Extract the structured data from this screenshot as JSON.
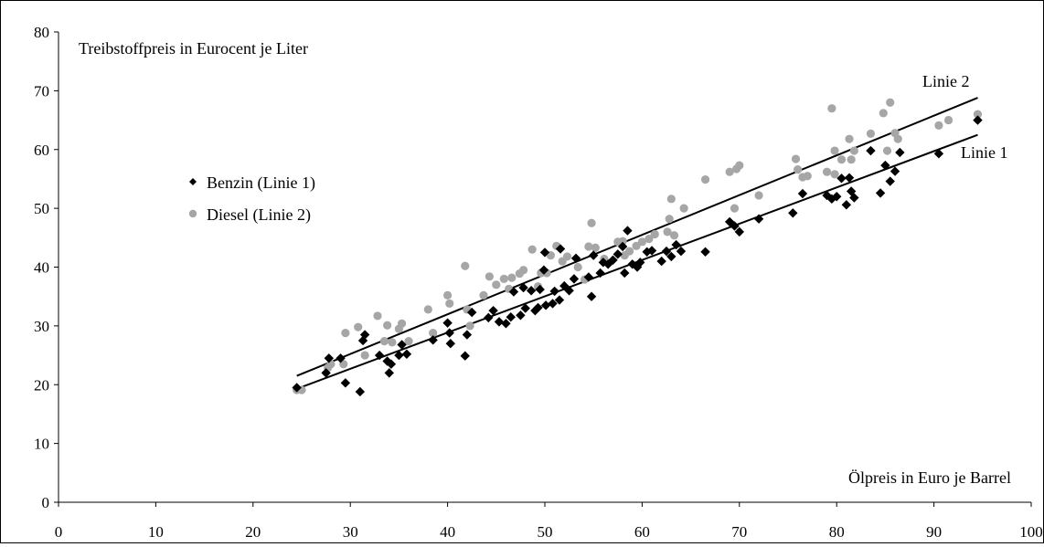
{
  "chart_data": {
    "type": "scatter",
    "title": "",
    "ylabel": "Treibstoffpreis in Eurocent je Liter",
    "xlabel": "Ölpreis in Euro je Barrel",
    "xlim": [
      0,
      100
    ],
    "ylim": [
      0,
      80
    ],
    "x_ticks": [
      "0",
      "10",
      "20",
      "30",
      "40",
      "50",
      "60",
      "70",
      "80",
      "90",
      "100"
    ],
    "y_ticks": [
      "0",
      "10",
      "20",
      "30",
      "40",
      "50",
      "60",
      "70",
      "80"
    ],
    "grid": false,
    "legend": {
      "placement": "left-middle"
    },
    "series": [
      {
        "name": "Benzin (Linie 1)",
        "marker": "diamond",
        "color": "#000000",
        "points": [
          [
            24.5,
            19.5
          ],
          [
            27.5,
            22
          ],
          [
            27.8,
            24.5
          ],
          [
            29,
            24.5
          ],
          [
            29.5,
            20.3
          ],
          [
            31,
            18.8
          ],
          [
            31.3,
            27.5
          ],
          [
            31.5,
            28.5
          ],
          [
            33,
            25
          ],
          [
            33.8,
            24
          ],
          [
            34,
            22
          ],
          [
            34.2,
            23.5
          ],
          [
            35,
            25
          ],
          [
            35.3,
            26.8
          ],
          [
            35.8,
            25.2
          ],
          [
            38.5,
            27.6
          ],
          [
            40,
            30.5
          ],
          [
            40.2,
            28.8
          ],
          [
            40.3,
            27
          ],
          [
            41.8,
            24.9
          ],
          [
            42,
            28.5
          ],
          [
            42.5,
            32.3
          ],
          [
            44.2,
            31.4
          ],
          [
            44.7,
            32.6
          ],
          [
            45.3,
            30.7
          ],
          [
            46,
            30.4
          ],
          [
            46.5,
            31.5
          ],
          [
            46.8,
            35.8
          ],
          [
            47.5,
            31.8
          ],
          [
            47.8,
            36.5
          ],
          [
            48,
            33
          ],
          [
            48.6,
            36
          ],
          [
            49,
            32.6
          ],
          [
            49.3,
            33.1
          ],
          [
            49.5,
            36.2
          ],
          [
            49.9,
            39.5
          ],
          [
            50,
            42.5
          ],
          [
            50.1,
            33.5
          ],
          [
            50.8,
            33.8
          ],
          [
            51,
            35.9
          ],
          [
            51.5,
            34.4
          ],
          [
            51.6,
            43.1
          ],
          [
            52,
            36.8
          ],
          [
            52.5,
            36
          ],
          [
            53,
            38
          ],
          [
            53.2,
            41.5
          ],
          [
            54.5,
            38.3
          ],
          [
            54.8,
            35
          ],
          [
            55,
            42
          ],
          [
            55.7,
            39
          ],
          [
            56,
            40.8
          ],
          [
            56.5,
            40.5
          ],
          [
            57,
            41.2
          ],
          [
            57.5,
            42.2
          ],
          [
            58,
            43.5
          ],
          [
            58.2,
            39
          ],
          [
            58.5,
            46.2
          ],
          [
            59,
            40.5
          ],
          [
            59.5,
            40
          ],
          [
            59.8,
            40.8
          ],
          [
            60.5,
            42.6
          ],
          [
            61,
            42.8
          ],
          [
            62,
            41
          ],
          [
            62.5,
            42.7
          ],
          [
            63,
            41.8
          ],
          [
            63.5,
            43.8
          ],
          [
            64,
            42.7
          ],
          [
            66.5,
            42.6
          ],
          [
            69,
            47.7
          ],
          [
            69.5,
            47
          ],
          [
            70,
            46
          ],
          [
            72,
            48.2
          ],
          [
            75.5,
            49.2
          ],
          [
            76.5,
            52.5
          ],
          [
            79,
            52.2
          ],
          [
            79.5,
            51.6
          ],
          [
            80,
            52
          ],
          [
            80.5,
            55.1
          ],
          [
            81,
            50.6
          ],
          [
            81.3,
            55.2
          ],
          [
            81.5,
            52.9
          ],
          [
            81.8,
            51.8
          ],
          [
            83.5,
            59.8
          ],
          [
            84.5,
            52.6
          ],
          [
            85,
            57.3
          ],
          [
            85.5,
            54.6
          ],
          [
            86,
            56.3
          ],
          [
            86.5,
            59.5
          ],
          [
            90.5,
            59.3
          ],
          [
            94.5,
            65
          ]
        ]
      },
      {
        "name": "Diesel (Linie 2)",
        "marker": "circle",
        "color": "#a6a6a6",
        "points": [
          [
            24.5,
            19.1
          ],
          [
            25,
            19.1
          ],
          [
            27.7,
            22.9
          ],
          [
            28,
            23.5
          ],
          [
            29.3,
            23.5
          ],
          [
            29.5,
            28.8
          ],
          [
            30.8,
            29.8
          ],
          [
            31.5,
            25
          ],
          [
            32.8,
            31.7
          ],
          [
            33.5,
            27.4
          ],
          [
            33.8,
            30.1
          ],
          [
            34.3,
            27.2
          ],
          [
            35,
            29.5
          ],
          [
            35.3,
            30.4
          ],
          [
            36,
            27.4
          ],
          [
            38,
            32.8
          ],
          [
            38.5,
            28.8
          ],
          [
            40,
            35.2
          ],
          [
            40.2,
            33.8
          ],
          [
            41.8,
            40.2
          ],
          [
            42,
            32.8
          ],
          [
            42.3,
            30
          ],
          [
            43.7,
            35.2
          ],
          [
            44.3,
            38.4
          ],
          [
            45,
            37
          ],
          [
            45.8,
            38
          ],
          [
            46.3,
            36.3
          ],
          [
            46.6,
            38.2
          ],
          [
            47.4,
            38.9
          ],
          [
            47.8,
            39.5
          ],
          [
            48.7,
            43
          ],
          [
            49.3,
            36.7
          ],
          [
            49.6,
            39
          ],
          [
            50.2,
            39
          ],
          [
            50.6,
            42
          ],
          [
            51.2,
            43.6
          ],
          [
            51.8,
            41
          ],
          [
            52.3,
            41.8
          ],
          [
            53.4,
            40
          ],
          [
            54.1,
            37.9
          ],
          [
            54.5,
            43.5
          ],
          [
            54.8,
            47.5
          ],
          [
            55.2,
            43.3
          ],
          [
            56.1,
            41.4
          ],
          [
            57.5,
            44.3
          ],
          [
            58,
            44.4
          ],
          [
            58.2,
            42
          ],
          [
            58.7,
            42.7
          ],
          [
            59.4,
            43.6
          ],
          [
            60,
            44.3
          ],
          [
            60.7,
            44.8
          ],
          [
            61.3,
            45.6
          ],
          [
            62.6,
            46
          ],
          [
            62.8,
            48.2
          ],
          [
            63,
            51.6
          ],
          [
            63.3,
            45.4
          ],
          [
            64.3,
            50
          ],
          [
            66.5,
            54.9
          ],
          [
            69,
            56.2
          ],
          [
            69.7,
            56.7
          ],
          [
            69.5,
            50
          ],
          [
            70,
            57.3
          ],
          [
            72,
            52.2
          ],
          [
            75.8,
            58.4
          ],
          [
            76,
            56.6
          ],
          [
            76.5,
            55.3
          ],
          [
            77,
            55.5
          ],
          [
            79,
            56.2
          ],
          [
            79.5,
            67
          ],
          [
            79.8,
            55.8
          ],
          [
            79.8,
            59.8
          ],
          [
            80.5,
            58.3
          ],
          [
            81.3,
            61.8
          ],
          [
            81.5,
            58.3
          ],
          [
            81.8,
            59.8
          ],
          [
            83.5,
            62.7
          ],
          [
            84.8,
            66.2
          ],
          [
            85.2,
            59.8
          ],
          [
            85.5,
            68
          ],
          [
            86,
            62.8
          ],
          [
            86.3,
            61.8
          ],
          [
            90.5,
            64.1
          ],
          [
            91.5,
            65
          ],
          [
            94.5,
            66
          ]
        ]
      }
    ],
    "lines": [
      {
        "label": "Linie 1",
        "x": [
          24.5,
          94.5
        ],
        "y": [
          19.3,
          62.5
        ]
      },
      {
        "label": "Linie 2",
        "x": [
          24.5,
          94.5
        ],
        "y": [
          21.5,
          68.8
        ]
      }
    ]
  }
}
